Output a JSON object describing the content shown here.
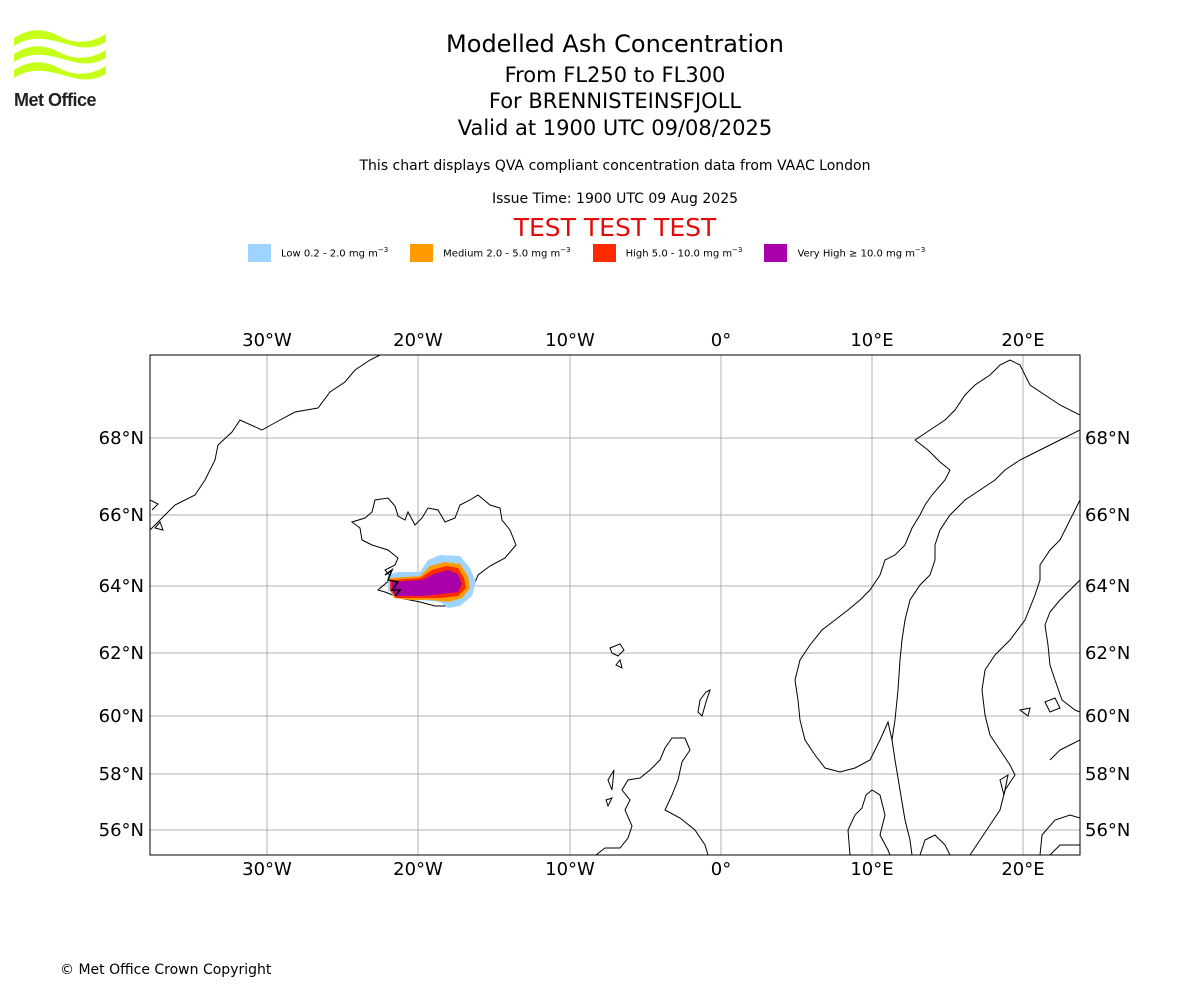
{
  "logo": {
    "text": "Met Office",
    "color": "#c6ff1a"
  },
  "title": "Modelled Ash Concentration",
  "level": "From FL250 to FL300",
  "volcano": "For BRENNISTEINSFJOLL",
  "valid": "Valid at 1900 UTC 09/08/2025",
  "description": "This chart displays QVA compliant concentration data from VAAC London",
  "issue_time": "Issue Time: 1900 UTC 09 Aug 2025",
  "test_banner": "TEST TEST TEST",
  "legend": [
    {
      "label": "Low 0.2 - 2.0 mg m",
      "sup": "−3",
      "color": "#9fd4ff"
    },
    {
      "label": "Medium 2.0 - 5.0 mg m",
      "sup": "−3",
      "color": "#ff9a00"
    },
    {
      "label": "High 5.0 - 10.0 mg m",
      "sup": "−3",
      "color": "#ff2b00"
    },
    {
      "label": "Very High  ≥  10.0 mg m",
      "sup": "−3",
      "color": "#aa00aa"
    }
  ],
  "map": {
    "lon_range": [
      -37.7,
      23.8
    ],
    "lat_ticks": [
      "68°N",
      "66°N",
      "64°N",
      "62°N",
      "60°N",
      "58°N",
      "56°N"
    ],
    "lon_ticks": [
      "30°W",
      "20°W",
      "10°W",
      "0°",
      "10°E",
      "20°E"
    ],
    "grid": true,
    "gridline_color": "#b0b0b0",
    "coastline_color": "#000000"
  },
  "copyright": "© Met Office Crown Copyright"
}
